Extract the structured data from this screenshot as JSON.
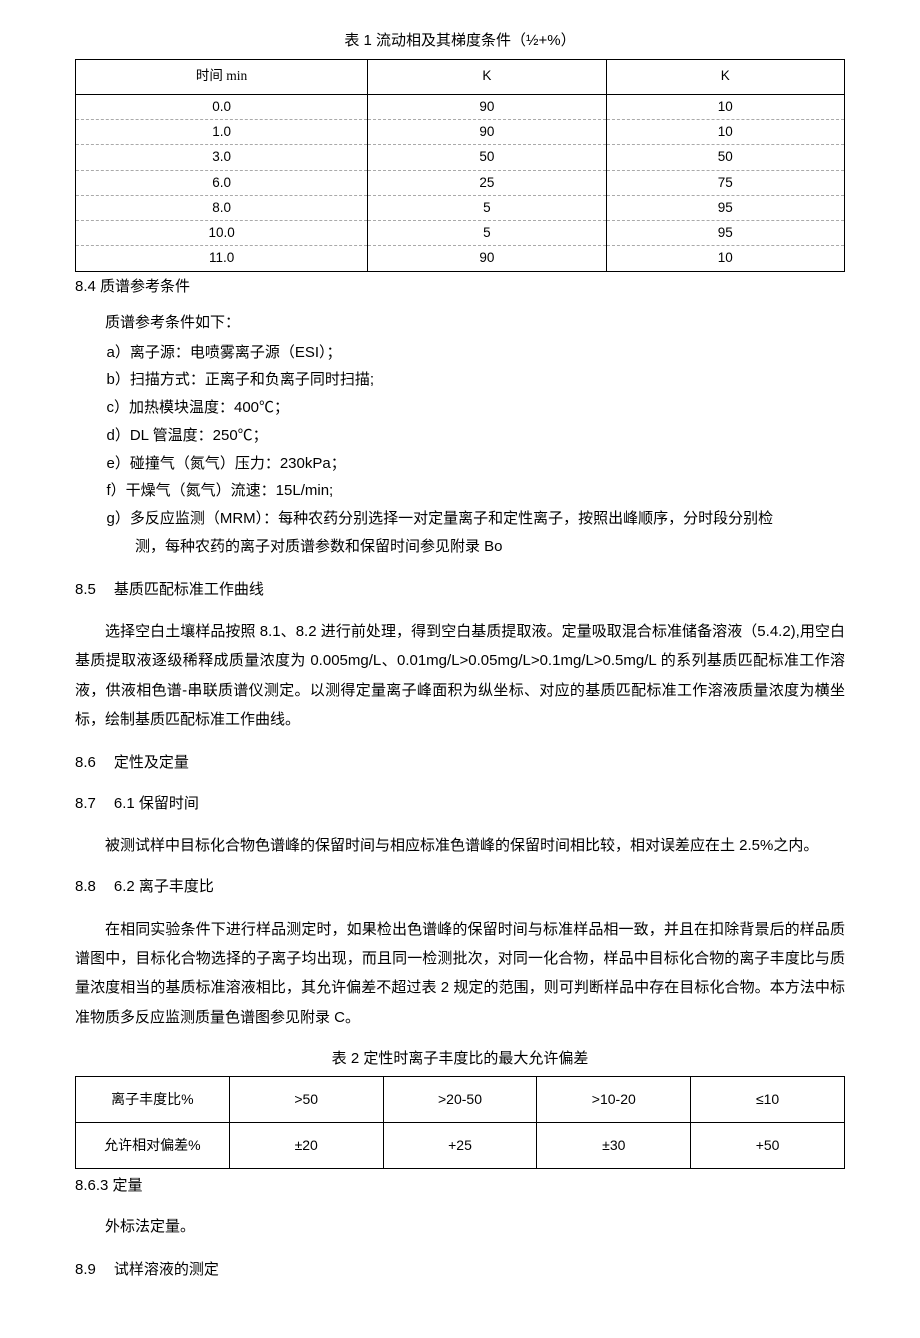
{
  "table1": {
    "caption": "表 1 流动相及其梯度条件（½+%）",
    "headers": [
      "时间 min",
      "K",
      "K"
    ],
    "rows": [
      [
        "0.0",
        "90",
        "10"
      ],
      [
        "1.0",
        "90",
        "10"
      ],
      [
        "3.0",
        "50",
        "50"
      ],
      [
        "6.0",
        "25",
        "75"
      ],
      [
        "8.0",
        "5",
        "95"
      ],
      [
        "10.0",
        "5",
        "95"
      ],
      [
        "11.0",
        "90",
        "10"
      ]
    ],
    "col_widths": [
      "38%",
      "31%",
      "31%"
    ]
  },
  "s84": {
    "heading": "8.4 质谱参考条件",
    "intro": "质谱参考条件如下：",
    "items": [
      "a）离子源：电喷雾离子源（ESI）；",
      "b）扫描方式：正离子和负离子同时扫描;",
      "c）加热模块温度：400℃；",
      "d）DL 管温度：250℃；",
      "e）碰撞气（氮气）压力：230kPa；",
      "f）干燥气（氮气）流速：15L/min;"
    ],
    "item_g_line1": "g）多反应监测（MRM）：每种农药分别选择一对定量离子和定性离子，按照出峰顺序，分时段分别检",
    "item_g_line2": "测，每种农药的离子对质谱参数和保留时间参见附录 Bo"
  },
  "s85": {
    "num": "8.5",
    "title": "基质匹配标准工作曲线",
    "body": "选择空白土壤样品按照 8.1、8.2 进行前处理，得到空白基质提取液。定量吸取混合标准储备溶液（5.4.2),用空白基质提取液逐级稀释成质量浓度为 0.005mg/L、0.01mg/L>0.05mg/L>0.1mg/L>0.5mg/L 的系列基质匹配标准工作溶液，供液相色谱-串联质谱仪测定。以测得定量离子峰面积为纵坐标、对应的基质匹配标准工作溶液质量浓度为横坐标，绘制基质匹配标准工作曲线。"
  },
  "s86": {
    "num": "8.6",
    "title": "定性及定量"
  },
  "s87": {
    "num": "8.7",
    "subnum": "6.1",
    "title": "保留时间",
    "body": "被测试样中目标化合物色谱峰的保留时间与相应标准色谱峰的保留时间相比较，相对误差应在土 2.5%之内。"
  },
  "s88": {
    "num": "8.8",
    "subnum": "6.2",
    "title": "离子丰度比",
    "body": "在相同实验条件下进行样品测定时，如果检出色谱峰的保留时间与标准样品相一致，并且在扣除背景后的样品质谱图中，目标化合物选择的子离子均出现，而且同一检测批次，对同一化合物，样品中目标化合物的离子丰度比与质量浓度相当的基质标准溶液相比，其允许偏差不超过表 2 规定的范围，则可判断样品中存在目标化合物。本方法中标准物质多反应监测质量色谱图参见附录 C。"
  },
  "table2": {
    "caption": "表 2 定性时离子丰度比的最大允许偏差",
    "rows": [
      [
        "离子丰度比%",
        ">50",
        ">20-50",
        ">10-20",
        "≤10"
      ],
      [
        "允许相对偏差%",
        "±20",
        "+25",
        "±30",
        "+50"
      ]
    ],
    "col_widths": [
      "20%",
      "20%",
      "20%",
      "20%",
      "20%"
    ]
  },
  "s863": {
    "heading": "8.6.3 定量",
    "body": "外标法定量。"
  },
  "s89": {
    "num": "8.9",
    "title": "试样溶液的测定"
  }
}
